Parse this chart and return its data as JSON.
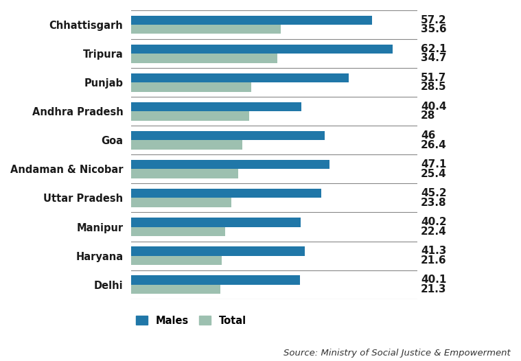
{
  "categories": [
    "Delhi",
    "Haryana",
    "Manipur",
    "Uttar Pradesh",
    "Andaman & Nicobar",
    "Goa",
    "Andhra Pradesh",
    "Punjab",
    "Tripura",
    "Chhattisgarh"
  ],
  "males": [
    40.1,
    41.3,
    40.2,
    45.2,
    47.1,
    46.0,
    40.4,
    51.7,
    62.1,
    57.2
  ],
  "total": [
    21.3,
    21.6,
    22.4,
    23.8,
    25.4,
    26.4,
    28.0,
    28.5,
    34.7,
    35.6
  ],
  "males_labels": [
    "40.1",
    "41.3",
    "40.2",
    "45.2",
    "47.1",
    "46",
    "40.4",
    "51.7",
    "62.1",
    "57.2"
  ],
  "total_labels": [
    "21.3",
    "21.6",
    "22.4",
    "23.8",
    "25.4",
    "26.4",
    "28",
    "28.5",
    "34.7",
    "35.6"
  ],
  "male_color": "#2077a8",
  "total_color": "#9dc0b0",
  "background_color": "#ffffff",
  "bar_height": 0.32,
  "xlim_max": 68,
  "legend_males": "Males",
  "legend_total": "Total",
  "source_text": "Source: Ministry of Social Justice & Empowerment",
  "label_fontsize": 10,
  "tick_fontsize": 10.5,
  "value_fontsize": 11
}
